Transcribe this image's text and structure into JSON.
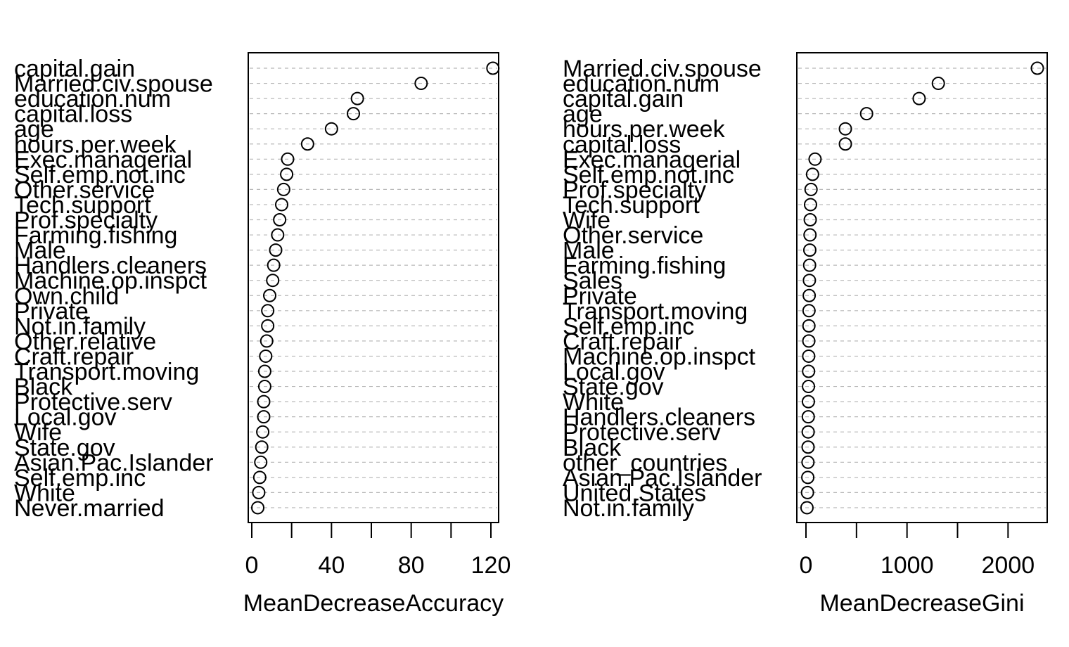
{
  "chart_data": [
    {
      "type": "scatter",
      "xlabel": "MeanDecreaseAccuracy",
      "xlim": [
        0,
        124
      ],
      "xticks": [
        0,
        20,
        40,
        60,
        80,
        100,
        120
      ],
      "xtick_labels": [
        "0",
        "",
        "40",
        "",
        "80",
        "",
        "120"
      ],
      "categories": [
        "capital.gain",
        "Married.civ.spouse",
        "education.num",
        "capital.loss",
        "age",
        "hours.per.week",
        "Exec.managerial",
        "Self.emp.not.inc",
        "Other.service",
        "Tech.support",
        "Prof.specialty",
        "Farming.fishing",
        "Male",
        "Handlers.cleaners",
        "Machine.op.inspct",
        "Own.child",
        "Private",
        "Not.in.family",
        "Other.relative",
        "Craft.repair",
        "Transport.moving",
        "Black",
        "Protective.serv",
        "Local.gov",
        "Wife",
        "State.gov",
        "Asian.Pac.Islander",
        "Self.emp.inc",
        "White",
        "Never.married"
      ],
      "values": [
        121,
        85,
        53,
        51,
        40,
        28,
        18,
        17.5,
        16,
        15,
        14,
        13,
        12,
        11,
        10.5,
        9,
        8,
        8,
        7.5,
        7,
        6.5,
        6.5,
        6,
        6,
        5.5,
        5,
        4.5,
        4,
        3.5,
        3
      ]
    },
    {
      "type": "scatter",
      "xlabel": "MeanDecreaseGini",
      "xlim": [
        0,
        2380
      ],
      "xticks": [
        0,
        500,
        1000,
        1500,
        2000
      ],
      "xtick_labels": [
        "0",
        "",
        "1000",
        "",
        "2000"
      ],
      "categories": [
        "Married.civ.spouse",
        "education.num",
        "capital.gain",
        "age",
        "hours.per.week",
        "capital.loss",
        "Exec.managerial",
        "Self.emp.not.inc",
        "Prof.specialty",
        "Tech.support",
        "Wife",
        "Other.service",
        "Male",
        "Farming.fishing",
        "Sales",
        "Private",
        "Transport.moving",
        "Self.emp.inc",
        "Craft.repair",
        "Machine.op.inspct",
        "Local.gov",
        "State.gov",
        "White",
        "Handlers.cleaners",
        "Protective.serv",
        "Black",
        "other_countries",
        "Asian.Pac.Islander",
        "United.States",
        "Not.in.family"
      ],
      "values": [
        2290,
        1310,
        1120,
        600,
        390,
        390,
        90,
        65,
        50,
        45,
        42,
        40,
        38,
        36,
        34,
        32,
        30,
        29,
        28,
        27,
        26,
        25,
        24,
        23,
        22,
        21,
        20,
        18,
        15,
        10
      ]
    }
  ]
}
